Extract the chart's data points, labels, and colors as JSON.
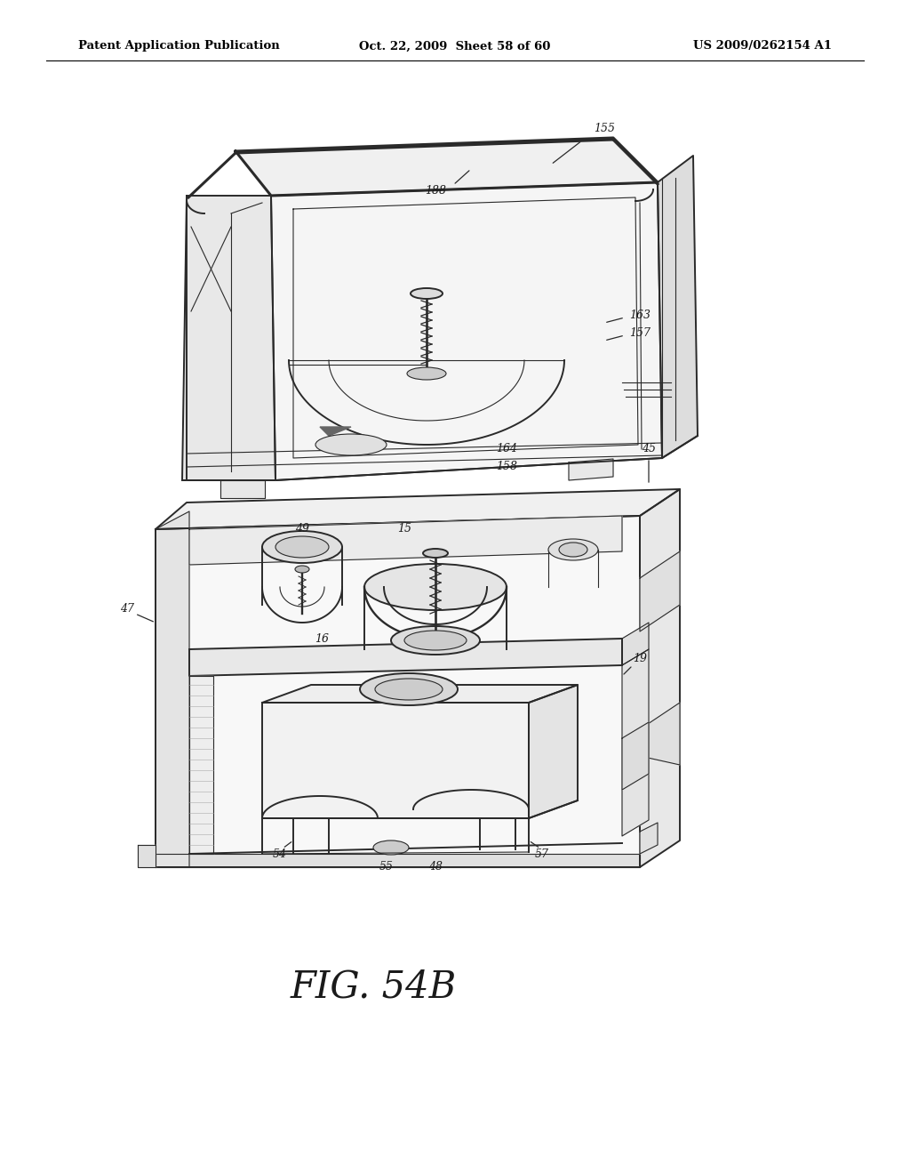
{
  "background_color": "#ffffff",
  "header_left": "Patent Application Publication",
  "header_center": "Oct. 22, 2009  Sheet 58 of 60",
  "header_right": "US 2009/0262154 A1",
  "figure_label": "FIG. 54B",
  "line_color": "#2a2a2a",
  "text_color": "#1a1a1a",
  "header_color": "#000000",
  "lw_main": 1.4,
  "lw_thin": 0.8,
  "lw_thick": 2.2
}
